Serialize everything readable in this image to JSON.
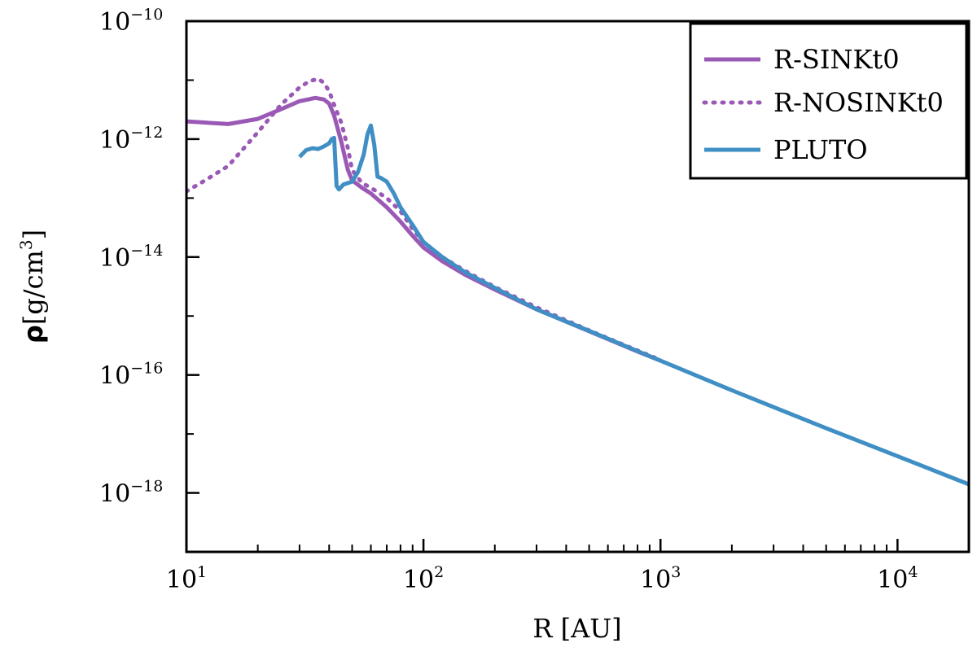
{
  "chart_data": {
    "type": "line",
    "title": "",
    "xlabel": "R [AU]",
    "ylabel": "ρ[g/cm³]",
    "ylabel_parts": {
      "rho": "ρ",
      "open": "[g/cm",
      "exp": "3",
      "close": "]"
    },
    "xscale": "log",
    "yscale": "log",
    "xlim": [
      10,
      20000
    ],
    "ylim": [
      1e-19,
      1e-10
    ],
    "x_ticks": [
      {
        "value": 10,
        "base": "10",
        "exp": "1"
      },
      {
        "value": 100,
        "base": "10",
        "exp": "2"
      },
      {
        "value": 1000,
        "base": "10",
        "exp": "3"
      },
      {
        "value": 10000,
        "base": "10",
        "exp": "4"
      }
    ],
    "y_ticks": [
      {
        "value": 1e-10,
        "base": "10",
        "exp": "−10"
      },
      {
        "value": 1e-12,
        "base": "10",
        "exp": "−12"
      },
      {
        "value": 1e-14,
        "base": "10",
        "exp": "−14"
      },
      {
        "value": 1e-16,
        "base": "10",
        "exp": "−16"
      },
      {
        "value": 1e-18,
        "base": "10",
        "exp": "−18"
      }
    ],
    "legend_position": "top-right",
    "series": [
      {
        "name": "R-SINKt0",
        "color": "#9b59b6",
        "style": "solid",
        "x": [
          10,
          15,
          20,
          25,
          30,
          35,
          38,
          40,
          42,
          45,
          48,
          50,
          55,
          60,
          70,
          80,
          90,
          100,
          120,
          150,
          200,
          300,
          500,
          800,
          1000
        ],
        "y": [
          2e-12,
          1.8e-12,
          2.2e-12,
          3.2e-12,
          4.4e-12,
          5e-12,
          4.7e-12,
          4e-12,
          2.5e-12,
          9e-13,
          3e-13,
          2e-13,
          1.5e-13,
          1.2e-13,
          7e-14,
          4e-14,
          2.3e-14,
          1.45e-14,
          8.5e-15,
          5e-15,
          2.8e-15,
          1.3e-15,
          5.5e-16,
          2.5e-16,
          1.75e-16
        ]
      },
      {
        "name": "R-NOSINKt0",
        "color": "#9b59b6",
        "style": "dotted",
        "x": [
          10,
          12,
          15,
          20,
          25,
          30,
          33,
          36,
          38,
          40,
          42,
          45,
          48,
          50,
          55,
          60,
          70,
          80,
          90,
          100,
          120,
          150,
          200,
          300,
          500,
          800,
          1000
        ],
        "y": [
          1.3e-13,
          2e-13,
          3.5e-13,
          1.3e-12,
          3.8e-12,
          7.5e-12,
          9.6e-12,
          1.05e-11,
          9e-12,
          6.5e-12,
          3.8e-12,
          1.9e-12,
          7e-13,
          3e-13,
          1.8e-13,
          1.5e-13,
          1e-13,
          6e-14,
          3e-14,
          1.8e-14,
          1e-14,
          5.8e-15,
          3.1e-15,
          1.4e-15,
          5.7e-16,
          2.6e-16,
          1.8e-16
        ]
      },
      {
        "name": "PLUTO",
        "color": "#3f8fc5",
        "style": "solid",
        "x": [
          30,
          32,
          34,
          36,
          38,
          40,
          41,
          42,
          43,
          44,
          46,
          50,
          53,
          56,
          58,
          60,
          62,
          64,
          66,
          70,
          75,
          80,
          90,
          100,
          120,
          150,
          200,
          300,
          500,
          1000,
          2000,
          5000,
          10000,
          20000
        ],
        "y": [
          5e-13,
          6.5e-13,
          7e-13,
          6.8e-13,
          7.5e-13,
          8.5e-13,
          1e-12,
          1.05e-12,
          1.6e-13,
          1.4e-13,
          1.7e-13,
          1.9e-13,
          2.8e-13,
          5.5e-13,
          1.2e-12,
          1.7e-12,
          8e-13,
          2.3e-13,
          2.2e-13,
          1.9e-13,
          1.2e-13,
          7e-14,
          3.5e-14,
          1.8e-14,
          1e-14,
          5.5e-15,
          3e-15,
          1.3e-15,
          5.6e-16,
          1.75e-16,
          5.5e-17,
          1.25e-17,
          4.2e-18,
          1.4e-18
        ]
      }
    ]
  }
}
